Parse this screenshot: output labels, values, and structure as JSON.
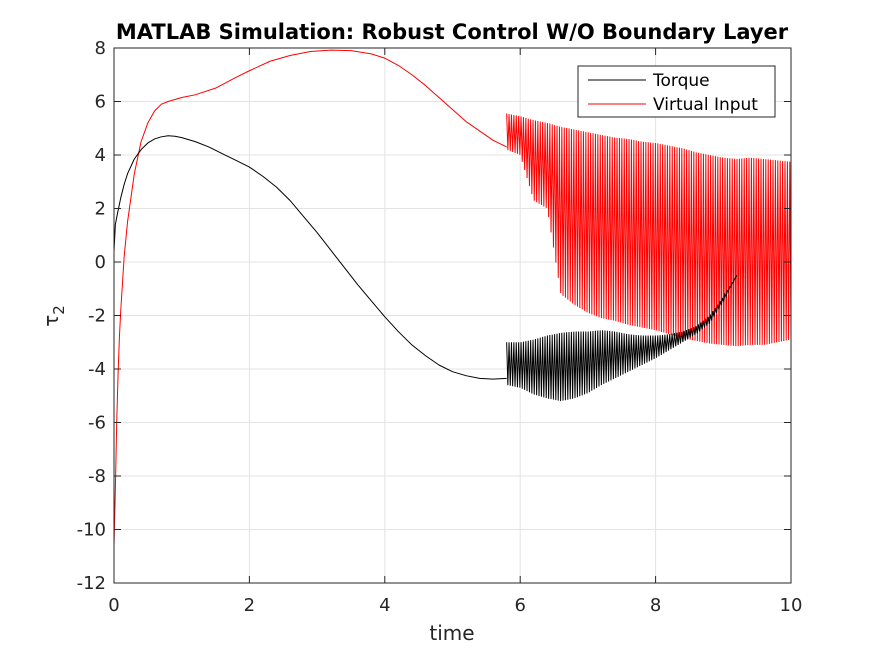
{
  "chart_data": {
    "type": "line",
    "title": "MATLAB Simulation: Robust Control W/O Boundary Layer",
    "xlabel": "time",
    "ylabel": "τ",
    "ylabel_subscript": "2",
    "xlim": [
      0,
      10
    ],
    "ylim": [
      -12,
      8
    ],
    "xticks": [
      0,
      2,
      4,
      6,
      8,
      10
    ],
    "yticks": [
      -12,
      -10,
      -8,
      -6,
      -4,
      -2,
      0,
      2,
      4,
      6,
      8
    ],
    "grid": true,
    "legend_position": "top-right",
    "series": [
      {
        "name": "Torque",
        "color": "#000000",
        "smooth": {
          "x": [
            0,
            0.02,
            0.05,
            0.1,
            0.15,
            0.2,
            0.3,
            0.4,
            0.5,
            0.6,
            0.7,
            0.8,
            0.9,
            1.0,
            1.2,
            1.4,
            1.6,
            1.8,
            2.0,
            2.2,
            2.4,
            2.6,
            2.8,
            3.0,
            3.2,
            3.4,
            3.6,
            3.8,
            4.0,
            4.2,
            4.4,
            4.6,
            4.8,
            5.0,
            5.2,
            5.4,
            5.6,
            5.8
          ],
          "y": [
            0.4,
            1.4,
            1.8,
            2.4,
            2.9,
            3.3,
            3.85,
            4.2,
            4.45,
            4.6,
            4.68,
            4.72,
            4.7,
            4.65,
            4.5,
            4.3,
            4.05,
            3.8,
            3.55,
            3.2,
            2.8,
            2.3,
            1.7,
            1.1,
            0.45,
            -0.2,
            -0.85,
            -1.45,
            -2.05,
            -2.6,
            -3.1,
            -3.5,
            -3.85,
            -4.1,
            -4.25,
            -4.35,
            -4.38,
            -4.35
          ]
        },
        "oscillation": {
          "x": [
            5.8,
            6.0,
            6.2,
            6.4,
            6.6,
            6.8,
            7.0,
            7.2,
            7.4,
            7.6,
            7.8,
            8.0,
            8.2,
            8.4,
            8.6,
            8.8,
            9.0,
            9.2
          ],
          "upper": [
            -3.0,
            -3.0,
            -2.9,
            -2.75,
            -2.65,
            -2.6,
            -2.6,
            -2.55,
            -2.6,
            -2.7,
            -2.75,
            -2.75,
            -2.7,
            -2.6,
            -2.4,
            -2.0,
            -1.3,
            -0.5
          ],
          "lower": [
            -4.6,
            -4.7,
            -4.95,
            -5.1,
            -5.2,
            -5.1,
            -4.9,
            -4.6,
            -4.35,
            -4.1,
            -3.85,
            -3.6,
            -3.3,
            -3.0,
            -2.7,
            -2.3,
            -1.5,
            -0.5
          ]
        }
      },
      {
        "name": "Virtual Input",
        "color": "#ff0000",
        "smooth": {
          "x": [
            0,
            0.02,
            0.04,
            0.06,
            0.08,
            0.1,
            0.15,
            0.2,
            0.3,
            0.4,
            0.5,
            0.6,
            0.7,
            0.8,
            1.0,
            1.2,
            1.5,
            1.8,
            2.0,
            2.3,
            2.6,
            2.9,
            3.2,
            3.5,
            3.8,
            4.0,
            4.2,
            4.4,
            4.6,
            4.8,
            5.0,
            5.2,
            5.4,
            5.6,
            5.8
          ],
          "y": [
            -10.6,
            -8.5,
            -6.0,
            -4.2,
            -2.8,
            -1.8,
            0.2,
            1.5,
            3.3,
            4.5,
            5.2,
            5.65,
            5.9,
            6.0,
            6.15,
            6.25,
            6.5,
            6.9,
            7.15,
            7.5,
            7.72,
            7.87,
            7.92,
            7.9,
            7.78,
            7.62,
            7.35,
            7.0,
            6.6,
            6.15,
            5.7,
            5.25,
            4.9,
            4.55,
            4.3
          ]
        },
        "oscillation": {
          "x": [
            5.8,
            6.0,
            6.2,
            6.4,
            6.6,
            6.8,
            7.0,
            7.2,
            7.4,
            7.6,
            7.8,
            8.0,
            8.2,
            8.4,
            8.6,
            8.8,
            9.0,
            9.2,
            9.4,
            9.6,
            9.8,
            10.0
          ],
          "upper": [
            5.55,
            5.45,
            5.3,
            5.2,
            5.05,
            4.95,
            4.85,
            4.75,
            4.65,
            4.6,
            4.5,
            4.45,
            4.35,
            4.25,
            4.1,
            4.0,
            3.9,
            3.85,
            3.9,
            3.85,
            3.8,
            3.75
          ],
          "lower": [
            4.2,
            4.0,
            2.3,
            2.0,
            -1.2,
            -1.6,
            -1.9,
            -2.1,
            -2.2,
            -2.35,
            -2.45,
            -2.55,
            -2.7,
            -2.85,
            -2.95,
            -3.05,
            -3.1,
            -3.15,
            -3.1,
            -3.1,
            -3.0,
            -2.9
          ]
        }
      }
    ]
  }
}
